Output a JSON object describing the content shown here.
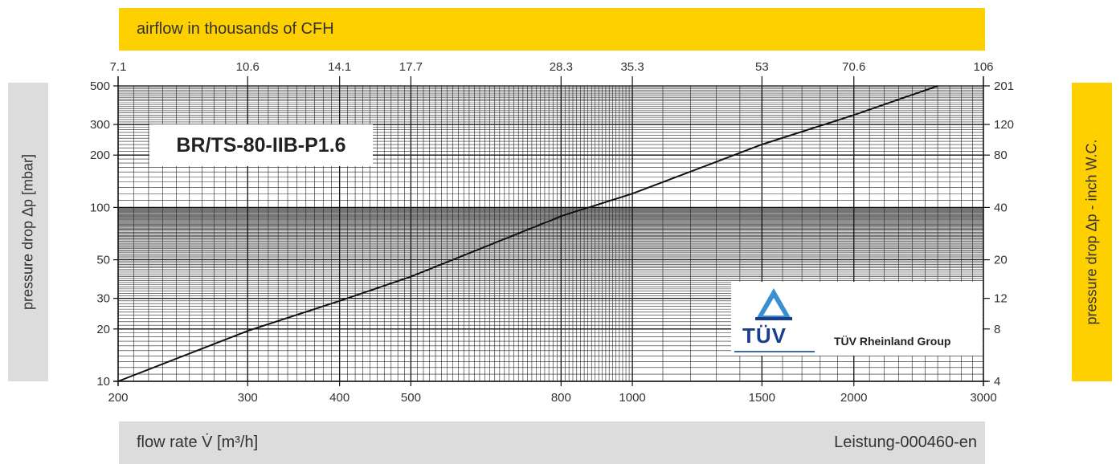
{
  "header": {
    "top_title": "airflow in thousands of CFH"
  },
  "footer": {
    "xlabel": "flow rate V̇ [m³/h]",
    "doc_id": "Leistung-000460-en"
  },
  "side": {
    "left_label": "pressure drop Δp  [mbar]",
    "right_label": "pressure drop Δp - inch W.C."
  },
  "model": "BR/TS-80-IIB-P1.6",
  "logo": {
    "wordmark": "TÜV",
    "group": "TÜV Rheinland Group"
  },
  "colors": {
    "yellow": "#ffd000",
    "gray": "#dcdcdc",
    "tuv_blue": "#1a3d8f",
    "tuv_light_blue": "#3a8fd0"
  },
  "chart_data": {
    "type": "line",
    "xscale": "log",
    "yscale": "log",
    "xlim": [
      200,
      3000
    ],
    "ylim": [
      10,
      500
    ],
    "grid": true,
    "xticks": [
      200,
      300,
      400,
      500,
      800,
      1000,
      1500,
      2000,
      3000
    ],
    "yticks": [
      10,
      20,
      30,
      50,
      100,
      200,
      300,
      500
    ],
    "top_ticks": [
      {
        "x": 200,
        "label": "7.1"
      },
      {
        "x": 300,
        "label": "10.6"
      },
      {
        "x": 400,
        "label": "14.1"
      },
      {
        "x": 500,
        "label": "17.7"
      },
      {
        "x": 800,
        "label": "28.3"
      },
      {
        "x": 1000,
        "label": "35.3"
      },
      {
        "x": 1500,
        "label": "53"
      },
      {
        "x": 2000,
        "label": "70.6"
      },
      {
        "x": 3000,
        "label": "106"
      }
    ],
    "right_ticks": [
      {
        "y": 10,
        "label": "4"
      },
      {
        "y": 20,
        "label": "8"
      },
      {
        "y": 30,
        "label": "12"
      },
      {
        "y": 50,
        "label": "20"
      },
      {
        "y": 100,
        "label": "40"
      },
      {
        "y": 200,
        "label": "80"
      },
      {
        "y": 300,
        "label": "120"
      },
      {
        "y": 500,
        "label": "201"
      }
    ],
    "series": [
      {
        "x": [
          200,
          300,
          400,
          500,
          800,
          1000,
          1500,
          2000,
          2600
        ],
        "y": [
          10,
          19.5,
          29,
          40,
          89,
          120,
          230,
          340,
          500
        ]
      }
    ]
  }
}
